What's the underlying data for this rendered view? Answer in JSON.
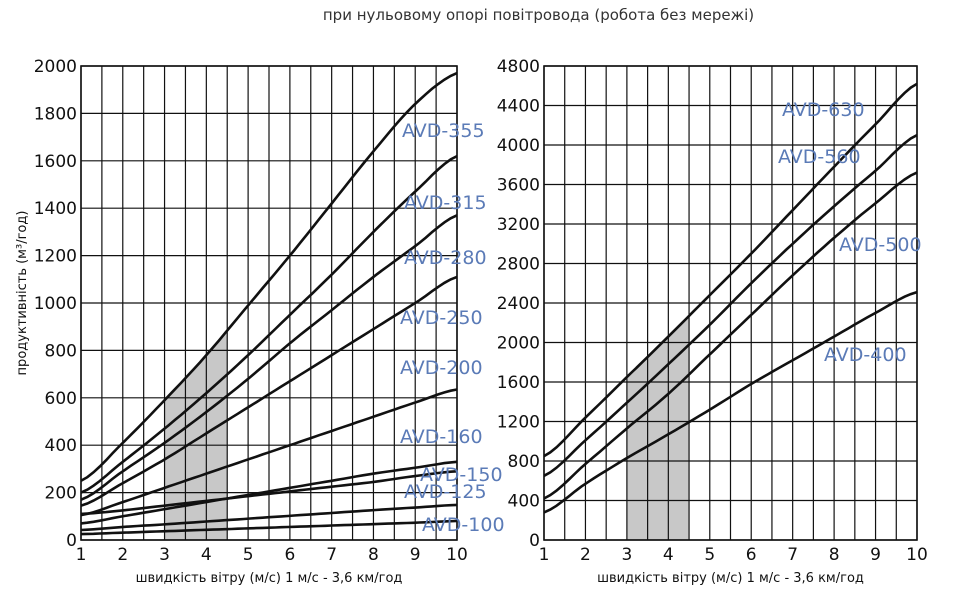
{
  "page_title": "при нульовому опорі повітровода (робота без мережі)",
  "colors": {
    "line": "#111111",
    "label": "#5b7bb7",
    "band": "#c8c8c8",
    "grid": "#111111"
  },
  "chart_data": [
    {
      "type": "line",
      "title": "",
      "xlabel": "швидкість вітру (м/с) 1 м/с - 3,6 км/год",
      "ylabel": "продуктивність (м³/год)",
      "xlim": [
        1,
        10
      ],
      "ylim": [
        0,
        2000
      ],
      "xticks": [
        "1",
        "2",
        "3",
        "4",
        "5",
        "6",
        "7",
        "8",
        "9",
        "10"
      ],
      "yticks": [
        "0",
        "200",
        "400",
        "600",
        "800",
        "1000",
        "1200",
        "1400",
        "1600",
        "1800",
        "2000"
      ],
      "grid": true,
      "shaded_band": {
        "x_range": [
          3,
          4.5
        ]
      },
      "series": [
        {
          "name": "AVD-355",
          "x": [
            1,
            2,
            3,
            4,
            5,
            6,
            7,
            8,
            9,
            10
          ],
          "y": [
            250,
            410,
            590,
            780,
            990,
            1200,
            1420,
            1640,
            1840,
            1970
          ]
        },
        {
          "name": "AVD-315",
          "x": [
            1,
            2,
            3,
            4,
            5,
            6,
            7,
            8,
            9,
            10
          ],
          "y": [
            200,
            330,
            470,
            620,
            780,
            950,
            1120,
            1300,
            1470,
            1620
          ]
        },
        {
          "name": "AVD-280",
          "x": [
            1,
            2,
            3,
            4,
            5,
            6,
            7,
            8,
            9,
            10
          ],
          "y": [
            170,
            290,
            410,
            540,
            680,
            830,
            970,
            1110,
            1240,
            1370
          ]
        },
        {
          "name": "AVD-250",
          "x": [
            1,
            2,
            3,
            4,
            5,
            6,
            7,
            8,
            9,
            10
          ],
          "y": [
            145,
            240,
            340,
            450,
            560,
            670,
            780,
            890,
            1000,
            1110
          ]
        },
        {
          "name": "AVD-200",
          "x": [
            1,
            2,
            3,
            4,
            5,
            6,
            7,
            8,
            9,
            10
          ],
          "y": [
            105,
            160,
            220,
            280,
            340,
            400,
            460,
            520,
            580,
            635
          ]
        },
        {
          "name": "AVD-160",
          "x": [
            1,
            2,
            3,
            4,
            5,
            6,
            7,
            8,
            9,
            10
          ],
          "y": [
            70,
            100,
            130,
            160,
            190,
            220,
            250,
            280,
            305,
            330
          ]
        },
        {
          "name": "AVD-150",
          "x": [
            1,
            2,
            3,
            4,
            5,
            6,
            7,
            8,
            9,
            10
          ],
          "y": [
            110,
            125,
            145,
            165,
            185,
            205,
            225,
            245,
            270,
            290
          ]
        },
        {
          "name": "AVD-125",
          "x": [
            1,
            2,
            3,
            4,
            5,
            6,
            7,
            8,
            9,
            10
          ],
          "y": [
            42,
            55,
            66,
            78,
            90,
            102,
            114,
            126,
            137,
            148
          ]
        },
        {
          "name": "AVD-100",
          "x": [
            1,
            2,
            3,
            4,
            5,
            6,
            7,
            8,
            9,
            10
          ],
          "y": [
            25,
            31,
            37,
            43,
            49,
            55,
            61,
            67,
            73,
            80
          ]
        }
      ]
    },
    {
      "type": "line",
      "title": "",
      "xlabel": "швидкість вітру (м/с) 1 м/с - 3,6 км/год",
      "ylabel": "",
      "xlim": [
        1,
        10
      ],
      "ylim": [
        0,
        4800
      ],
      "xticks": [
        "1",
        "2",
        "3",
        "4",
        "5",
        "6",
        "7",
        "8",
        "9",
        "10"
      ],
      "yticks": [
        "0",
        "400",
        "800",
        "1200",
        "1600",
        "2000",
        "2400",
        "2800",
        "3200",
        "3600",
        "4000",
        "4400",
        "4800"
      ],
      "grid": true,
      "shaded_band": {
        "x_range": [
          3,
          4.5
        ]
      },
      "series": [
        {
          "name": "AVD-630",
          "x": [
            1,
            2,
            3,
            4,
            5,
            6,
            7,
            8,
            9,
            10
          ],
          "y": [
            850,
            1240,
            1650,
            2060,
            2480,
            2900,
            3340,
            3780,
            4210,
            4620
          ]
        },
        {
          "name": "AVD-560",
          "x": [
            1,
            2,
            3,
            4,
            5,
            6,
            7,
            8,
            9,
            10
          ],
          "y": [
            650,
            1010,
            1390,
            1780,
            2180,
            2600,
            3000,
            3380,
            3740,
            4100
          ]
        },
        {
          "name": "AVD-500",
          "x": [
            1,
            2,
            3,
            4,
            5,
            6,
            7,
            8,
            9,
            10
          ],
          "y": [
            420,
            770,
            1130,
            1480,
            1880,
            2280,
            2680,
            3060,
            3410,
            3720
          ]
        },
        {
          "name": "AVD-400",
          "x": [
            1,
            2,
            3,
            4,
            5,
            6,
            7,
            8,
            9,
            10
          ],
          "y": [
            280,
            570,
            830,
            1070,
            1320,
            1580,
            1820,
            2060,
            2300,
            2510
          ]
        }
      ],
      "labels": [
        "AVD-630",
        "AVD-560",
        "AVD-500",
        "AVD-400"
      ]
    }
  ]
}
